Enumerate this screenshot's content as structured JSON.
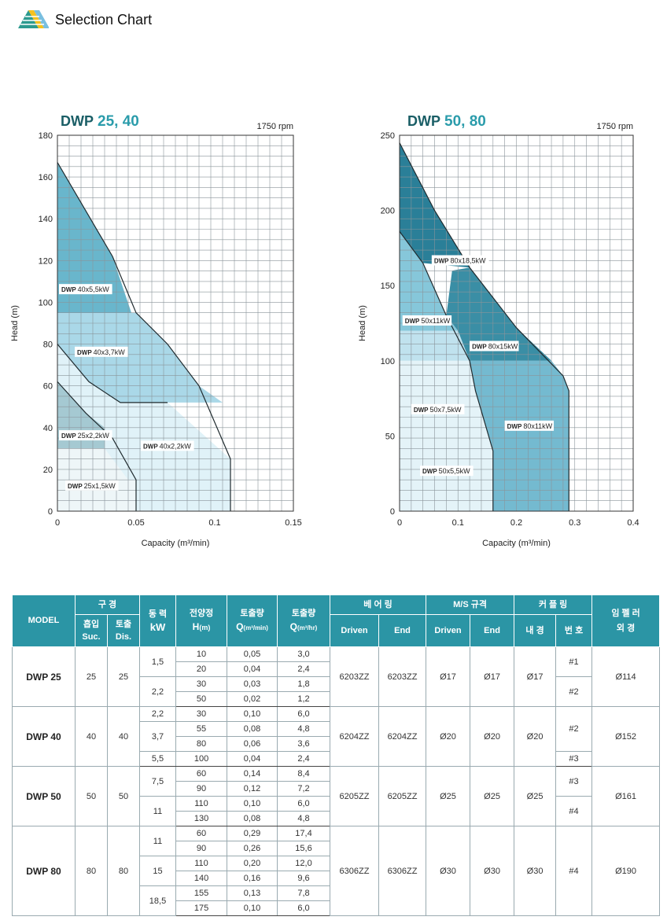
{
  "header": {
    "title": "Selection Chart",
    "logo_icon": "triangle-stripes-logo"
  },
  "chart_data": [
    {
      "type": "area",
      "title_prefix": "DWP",
      "title_models": "25, 40",
      "rpm": "1750 rpm",
      "xlabel": "Capacity (m³/min)",
      "ylabel": "Head (m)",
      "xlim": [
        0,
        0.15
      ],
      "ylim": [
        0,
        180
      ],
      "xticks": [
        "0",
        "0.05",
        "0.1",
        "0.15"
      ],
      "yticks": [
        "0",
        "20",
        "40",
        "60",
        "80",
        "100",
        "120",
        "140",
        "160",
        "180"
      ],
      "grid": true,
      "regions": [
        {
          "name": "DWP 40x2,2kW",
          "color": "#e0f2f8",
          "points": [
            [
              0,
              0
            ],
            [
              0,
              80
            ],
            [
              0.02,
              62
            ],
            [
              0.04,
              52
            ],
            [
              0.07,
              52
            ],
            [
              0.11,
              25
            ],
            [
              0.11,
              0
            ]
          ]
        },
        {
          "name": "DWP 40x3,7kW",
          "color": "#aad8e8",
          "points": [
            [
              0,
              80
            ],
            [
              0,
              95
            ],
            [
              0.05,
              95
            ],
            [
              0.07,
              80
            ],
            [
              0.09,
              60
            ],
            [
              0.105,
              52
            ],
            [
              0.04,
              52
            ],
            [
              0.02,
              62
            ]
          ]
        },
        {
          "name": "DWP 40x5,5kW",
          "color": "#69b6cc",
          "points": [
            [
              0,
              95
            ],
            [
              0,
              167
            ],
            [
              0.035,
              122
            ],
            [
              0.047,
              95
            ]
          ]
        },
        {
          "name": "DWP 25x2,2kW",
          "color": "#a5c9d2",
          "points": [
            [
              0,
              30
            ],
            [
              0,
              62
            ],
            [
              0.018,
              47
            ],
            [
              0.03,
              40
            ],
            [
              0.03,
              30
            ]
          ]
        },
        {
          "name": "DWP 25x1,5kW",
          "color": "#eef6f8",
          "points": [
            [
              0,
              0
            ],
            [
              0,
              30
            ],
            [
              0.03,
              30
            ],
            [
              0.045,
              15
            ],
            [
              0.05,
              15
            ],
            [
              0.05,
              0
            ]
          ]
        }
      ],
      "curves": [
        {
          "points": [
            [
              0,
              167
            ],
            [
              0.035,
              122
            ],
            [
              0.05,
              95
            ],
            [
              0.07,
              80
            ],
            [
              0.09,
              60
            ],
            [
              0.11,
              25
            ],
            [
              0.11,
              0
            ]
          ]
        },
        {
          "points": [
            [
              0,
              80
            ],
            [
              0.02,
              62
            ],
            [
              0.04,
              52
            ],
            [
              0.07,
              52
            ]
          ]
        },
        {
          "points": [
            [
              0,
              62
            ],
            [
              0.018,
              47
            ],
            [
              0.035,
              35
            ],
            [
              0.05,
              15
            ],
            [
              0.05,
              0
            ]
          ]
        }
      ],
      "labels": [
        {
          "prefix": "DWP",
          "text": "40x5,5kW",
          "x": 0.001,
          "y": 105
        },
        {
          "prefix": "DWP",
          "text": "40x3,7kW",
          "x": 0.011,
          "y": 75
        },
        {
          "prefix": "DWP",
          "text": "25x2,2kW",
          "x": 0.001,
          "y": 35
        },
        {
          "prefix": "DWP",
          "text": "40x2,2kW",
          "x": 0.053,
          "y": 30
        },
        {
          "prefix": "DWP",
          "text": "25x1,5kW",
          "x": 0.005,
          "y": 11
        }
      ]
    },
    {
      "type": "area",
      "title_prefix": "DWP",
      "title_models": "50, 80",
      "rpm": "1750 rpm",
      "xlabel": "Capacity (m³/min)",
      "ylabel": "Head (m)",
      "xlim": [
        0,
        0.4
      ],
      "ylim": [
        0,
        250
      ],
      "xticks": [
        "0",
        "0.1",
        "0.2",
        "0.3",
        "0.4"
      ],
      "yticks": [
        "0",
        "50",
        "100",
        "150",
        "200",
        "250"
      ],
      "grid": true,
      "regions": [
        {
          "name": "DWP 50x5,5kW",
          "color": "#e4f3f8",
          "points": [
            [
              0,
              0
            ],
            [
              0,
              100
            ],
            [
              0.12,
              100
            ],
            [
              0.13,
              80
            ],
            [
              0.16,
              40
            ],
            [
              0.16,
              0
            ]
          ]
        },
        {
          "name": "DWP 50x7,5kW",
          "color": "#c0e2ee",
          "points": [
            [
              0,
              100
            ],
            [
              0,
              120
            ],
            [
              0.1,
              120
            ],
            [
              0.12,
              100
            ]
          ]
        },
        {
          "name": "DWP 50x11kW",
          "color": "#86c7da",
          "points": [
            [
              0,
              120
            ],
            [
              0,
              186
            ],
            [
              0.04,
              165
            ],
            [
              0.08,
              130
            ],
            [
              0.1,
              120
            ]
          ]
        },
        {
          "name": "DWP 80x11kW",
          "color": "#74bad0",
          "points": [
            [
              0.16,
              0
            ],
            [
              0.16,
              40
            ],
            [
              0.13,
              80
            ],
            [
              0.12,
              100
            ],
            [
              0.26,
              100
            ],
            [
              0.28,
              90
            ],
            [
              0.29,
              80
            ],
            [
              0.29,
              0
            ]
          ]
        },
        {
          "name": "DWP 80x15kW",
          "color": "#3a8ea5",
          "points": [
            [
              0.09,
              160
            ],
            [
              0.08,
              130
            ],
            [
              0.1,
              120
            ],
            [
              0.12,
              100
            ],
            [
              0.26,
              100
            ],
            [
              0.2,
              122
            ],
            [
              0.12,
              162
            ]
          ]
        },
        {
          "name": "DWP 80x18,5kW",
          "color": "#2a7f98",
          "points": [
            [
              0,
              245
            ],
            [
              0,
              186
            ],
            [
              0.04,
              165
            ],
            [
              0.12,
              162
            ],
            [
              0.06,
              200
            ]
          ]
        }
      ],
      "curves": [
        {
          "points": [
            [
              0,
              245
            ],
            [
              0.06,
              200
            ],
            [
              0.12,
              162
            ],
            [
              0.2,
              122
            ],
            [
              0.28,
              90
            ],
            [
              0.29,
              80
            ],
            [
              0.29,
              0
            ]
          ]
        },
        {
          "points": [
            [
              0,
              186
            ],
            [
              0.04,
              165
            ],
            [
              0.08,
              130
            ],
            [
              0.12,
              100
            ],
            [
              0.13,
              80
            ],
            [
              0.16,
              40
            ],
            [
              0.16,
              0
            ]
          ]
        }
      ],
      "labels": [
        {
          "prefix": "DWP",
          "text": "80x18,5kW",
          "x": 0.055,
          "y": 165
        },
        {
          "prefix": "DWP",
          "text": "50x11kW",
          "x": 0.005,
          "y": 125
        },
        {
          "prefix": "DWP",
          "text": "80x15kW",
          "x": 0.12,
          "y": 108
        },
        {
          "prefix": "DWP",
          "text": "50x7,5kW",
          "x": 0.02,
          "y": 66
        },
        {
          "prefix": "DWP",
          "text": "80x11kW",
          "x": 0.18,
          "y": 55
        },
        {
          "prefix": "DWP",
          "text": "50x5,5kW",
          "x": 0.035,
          "y": 25
        }
      ]
    }
  ],
  "table": {
    "headers": {
      "model": "MODEL",
      "bore": "구 경",
      "suc_ko": "흡입",
      "suc_en": "Suc.",
      "dis_ko": "토출",
      "dis_en": "Dis.",
      "power_ko": "동 력",
      "power_unit": "kW",
      "head_ko": "전양정",
      "head_h": "H",
      "head_unit": "(m)",
      "cap_min_ko": "토출량",
      "cap_min_q": "Q",
      "cap_min_unit": "(m³/min)",
      "cap_hr_ko": "토출량",
      "cap_hr_q": "Q",
      "cap_hr_unit": "(m³/hr)",
      "bearing": "베 어 링",
      "bearing_driven": "Driven",
      "bearing_end": "End",
      "ms": "M/S 규격",
      "ms_driven": "Driven",
      "ms_end": "End",
      "coupling": "커 플 링",
      "coupling_inner": "내 경",
      "coupling_no": "번 호",
      "impeller_1": "임 펠 러",
      "impeller_2": "외     경"
    },
    "models": [
      {
        "model": "DWP 25",
        "suc": "25",
        "dis": "25",
        "bearing_driven": "6203ZZ",
        "bearing_end": "6203ZZ",
        "ms_driven": "Ø17",
        "ms_end": "Ø17",
        "coupling_inner": "Ø17",
        "impeller": "Ø114",
        "powers": [
          {
            "kw": "1,5",
            "rows": 2
          },
          {
            "kw": "2,2",
            "rows": 2
          }
        ],
        "couplings": [
          {
            "no": "#1",
            "rows": 2
          },
          {
            "no": "#2",
            "rows": 2
          }
        ],
        "points": [
          {
            "h": "10",
            "q_min": "0,05",
            "q_hr": "3,0"
          },
          {
            "h": "20",
            "q_min": "0,04",
            "q_hr": "2,4"
          },
          {
            "h": "30",
            "q_min": "0,03",
            "q_hr": "1,8"
          },
          {
            "h": "50",
            "q_min": "0,02",
            "q_hr": "1,2"
          }
        ]
      },
      {
        "model": "DWP 40",
        "suc": "40",
        "dis": "40",
        "bearing_driven": "6204ZZ",
        "bearing_end": "6204ZZ",
        "ms_driven": "Ø20",
        "ms_end": "Ø20",
        "coupling_inner": "Ø20",
        "impeller": "Ø152",
        "powers": [
          {
            "kw": "2,2",
            "rows": 1
          },
          {
            "kw": "3,7",
            "rows": 2
          },
          {
            "kw": "5,5",
            "rows": 1
          }
        ],
        "couplings": [
          {
            "no": "#2",
            "rows": 3
          },
          {
            "no": "#3",
            "rows": 1
          }
        ],
        "points": [
          {
            "h": "30",
            "q_min": "0,10",
            "q_hr": "6,0"
          },
          {
            "h": "55",
            "q_min": "0,08",
            "q_hr": "4,8"
          },
          {
            "h": "80",
            "q_min": "0,06",
            "q_hr": "3,6"
          },
          {
            "h": "100",
            "q_min": "0,04",
            "q_hr": "2,4"
          }
        ]
      },
      {
        "model": "DWP 50",
        "suc": "50",
        "dis": "50",
        "bearing_driven": "6205ZZ",
        "bearing_end": "6205ZZ",
        "ms_driven": "Ø25",
        "ms_end": "Ø25",
        "coupling_inner": "Ø25",
        "impeller": "Ø161",
        "powers": [
          {
            "kw": "7,5",
            "rows": 2
          },
          {
            "kw": "11",
            "rows": 2
          }
        ],
        "couplings": [
          {
            "no": "#3",
            "rows": 2
          },
          {
            "no": "#4",
            "rows": 2
          }
        ],
        "points": [
          {
            "h": "60",
            "q_min": "0,14",
            "q_hr": "8,4"
          },
          {
            "h": "90",
            "q_min": "0,12",
            "q_hr": "7,2"
          },
          {
            "h": "110",
            "q_min": "0,10",
            "q_hr": "6,0"
          },
          {
            "h": "130",
            "q_min": "0,08",
            "q_hr": "4,8"
          }
        ]
      },
      {
        "model": "DWP 80",
        "suc": "80",
        "dis": "80",
        "bearing_driven": "6306ZZ",
        "bearing_end": "6306ZZ",
        "ms_driven": "Ø30",
        "ms_end": "Ø30",
        "coupling_inner": "Ø30",
        "impeller": "Ø190",
        "powers": [
          {
            "kw": "11",
            "rows": 2
          },
          {
            "kw": "15",
            "rows": 2
          },
          {
            "kw": "18,5",
            "rows": 2
          }
        ],
        "couplings": [
          {
            "no": "#4",
            "rows": 6
          }
        ],
        "points": [
          {
            "h": "60",
            "q_min": "0,29",
            "q_hr": "17,4"
          },
          {
            "h": "90",
            "q_min": "0,26",
            "q_hr": "15,6"
          },
          {
            "h": "110",
            "q_min": "0,20",
            "q_hr": "12,0"
          },
          {
            "h": "140",
            "q_min": "0,16",
            "q_hr": "9,6"
          },
          {
            "h": "155",
            "q_min": "0,13",
            "q_hr": "7,8"
          },
          {
            "h": "175",
            "q_min": "0,10",
            "q_hr": "6,0"
          }
        ]
      }
    ]
  }
}
